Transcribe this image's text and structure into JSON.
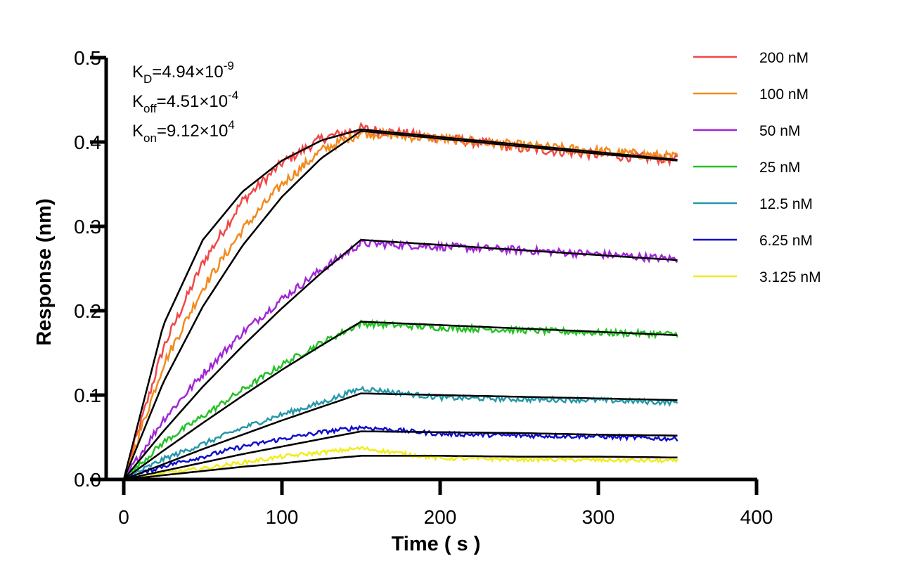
{
  "chart_data": {
    "type": "line",
    "title": "",
    "xlabel": "Time ( s )",
    "ylabel": "Response (nm)",
    "xlim": [
      0,
      400
    ],
    "ylim": [
      0,
      0.5
    ],
    "xticks": [
      "0",
      "100",
      "200",
      "300",
      "400"
    ],
    "yticks": [
      "0.0",
      "0.1",
      "0.2",
      "0.3",
      "0.4",
      "0.5"
    ],
    "grid": false,
    "legend_position": "top-right",
    "annotations": [
      {
        "main": "K",
        "sub": "D",
        "rest": "=4.94×10",
        "sup": "-9"
      },
      {
        "main": "K",
        "sub": "off",
        "rest": "=4.51×10",
        "sup": "-4"
      },
      {
        "main": "K",
        "sub": "on",
        "rest": "=9.12×10",
        "sup": "4"
      }
    ],
    "fit_color": "#000000",
    "association_end_s": 150,
    "series": [
      {
        "name": "200 nM",
        "color": "#f04848",
        "x": [
          0,
          25,
          50,
          75,
          100,
          125,
          150,
          200,
          250,
          300,
          350
        ],
        "y": [
          0,
          0.156,
          0.257,
          0.33,
          0.375,
          0.404,
          0.416,
          0.405,
          0.393,
          0.385,
          0.379
        ]
      },
      {
        "name": "100 nM",
        "color": "#f28a1e",
        "x": [
          0,
          25,
          50,
          75,
          100,
          125,
          150,
          200,
          250,
          300,
          350
        ],
        "y": [
          0,
          0.136,
          0.227,
          0.296,
          0.35,
          0.39,
          0.411,
          0.404,
          0.396,
          0.389,
          0.382
        ]
      },
      {
        "name": "50 nM",
        "color": "#a226d6",
        "x": [
          0,
          25,
          50,
          75,
          100,
          125,
          150,
          200,
          250,
          300,
          350
        ],
        "y": [
          0,
          0.071,
          0.125,
          0.174,
          0.214,
          0.249,
          0.28,
          0.276,
          0.272,
          0.267,
          0.261
        ]
      },
      {
        "name": "25 nM",
        "color": "#26c226",
        "x": [
          0,
          25,
          50,
          75,
          100,
          125,
          150,
          200,
          250,
          300,
          350
        ],
        "y": [
          0,
          0.044,
          0.075,
          0.106,
          0.136,
          0.162,
          0.185,
          0.18,
          0.177,
          0.174,
          0.172
        ]
      },
      {
        "name": "12.5 nM",
        "color": "#2599a9",
        "x": [
          0,
          25,
          50,
          75,
          100,
          125,
          150,
          200,
          250,
          300,
          350
        ],
        "y": [
          0,
          0.024,
          0.042,
          0.061,
          0.077,
          0.091,
          0.108,
          0.097,
          0.095,
          0.094,
          0.091
        ]
      },
      {
        "name": "6.25 nM",
        "color": "#1010cc",
        "x": [
          0,
          25,
          50,
          75,
          100,
          125,
          150,
          200,
          250,
          300,
          350
        ],
        "y": [
          0,
          0.016,
          0.027,
          0.039,
          0.048,
          0.056,
          0.062,
          0.054,
          0.052,
          0.051,
          0.048
        ]
      },
      {
        "name": "3.125 nM",
        "color": "#f2ec1e",
        "x": [
          0,
          25,
          50,
          75,
          100,
          125,
          150,
          200,
          250,
          300,
          350
        ],
        "y": [
          0,
          0.007,
          0.013,
          0.02,
          0.027,
          0.032,
          0.037,
          0.025,
          0.024,
          0.023,
          0.022
        ]
      }
    ],
    "fits": [
      {
        "name": "200 nM",
        "x": [
          0,
          25,
          50,
          75,
          100,
          125,
          150,
          200,
          250,
          300,
          350
        ],
        "y": [
          0,
          0.183,
          0.284,
          0.341,
          0.378,
          0.402,
          0.415,
          0.406,
          0.397,
          0.388,
          0.379
        ]
      },
      {
        "name": "100 nM",
        "x": [
          0,
          25,
          50,
          75,
          100,
          125,
          150,
          200,
          250,
          300,
          350
        ],
        "y": [
          0,
          0.115,
          0.205,
          0.277,
          0.335,
          0.381,
          0.413,
          0.404,
          0.395,
          0.386,
          0.378
        ]
      },
      {
        "name": "50 nM",
        "x": [
          0,
          25,
          50,
          75,
          100,
          125,
          150,
          200,
          250,
          300,
          350
        ],
        "y": [
          0,
          0.057,
          0.11,
          0.158,
          0.203,
          0.245,
          0.284,
          0.278,
          0.272,
          0.266,
          0.26
        ]
      },
      {
        "name": "25 nM",
        "x": [
          0,
          25,
          50,
          75,
          100,
          125,
          150,
          200,
          250,
          300,
          350
        ],
        "y": [
          0,
          0.034,
          0.067,
          0.099,
          0.13,
          0.159,
          0.187,
          0.183,
          0.179,
          0.175,
          0.171
        ]
      },
      {
        "name": "12.5 nM",
        "x": [
          0,
          25,
          50,
          75,
          100,
          125,
          150,
          200,
          250,
          300,
          350
        ],
        "y": [
          0,
          0.018,
          0.036,
          0.053,
          0.07,
          0.086,
          0.102,
          0.1,
          0.098,
          0.096,
          0.094
        ]
      },
      {
        "name": "6.25 nM",
        "x": [
          0,
          25,
          50,
          75,
          100,
          125,
          150,
          200,
          250,
          300,
          350
        ],
        "y": [
          0,
          0.01,
          0.02,
          0.03,
          0.039,
          0.048,
          0.057,
          0.056,
          0.055,
          0.053,
          0.052
        ]
      },
      {
        "name": "3.125 nM",
        "x": [
          0,
          25,
          50,
          75,
          100,
          125,
          150,
          200,
          250,
          300,
          350
        ],
        "y": [
          0,
          0.005,
          0.01,
          0.015,
          0.019,
          0.024,
          0.028,
          0.028,
          0.027,
          0.027,
          0.026
        ]
      }
    ]
  }
}
